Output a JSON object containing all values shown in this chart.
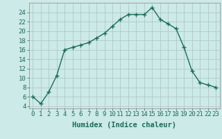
{
  "x": [
    0,
    1,
    2,
    3,
    4,
    5,
    6,
    7,
    8,
    9,
    10,
    11,
    12,
    13,
    14,
    15,
    16,
    17,
    18,
    19,
    20,
    21,
    22,
    23
  ],
  "y": [
    6,
    4.5,
    7,
    10.5,
    16,
    16.5,
    17,
    17.5,
    18.5,
    19.5,
    21,
    22.5,
    23.5,
    23.5,
    23.5,
    25,
    22.5,
    21.5,
    20.5,
    16.5,
    11.5,
    9,
    8.5,
    8
  ],
  "line_color": "#1a6b5a",
  "marker": "+",
  "marker_color": "#1a6b5a",
  "bg_color": "#cceae7",
  "grid_color": "#b0c8c8",
  "xlabel": "Humidex (Indice chaleur)",
  "xlabel_fontsize": 7.5,
  "xlim": [
    -0.5,
    23.5
  ],
  "ylim": [
    3.5,
    26
  ],
  "yticks": [
    4,
    6,
    8,
    10,
    12,
    14,
    16,
    18,
    20,
    22,
    24
  ],
  "xtick_labels": [
    "0",
    "1",
    "2",
    "3",
    "4",
    "5",
    "6",
    "7",
    "8",
    "9",
    "10",
    "11",
    "12",
    "13",
    "14",
    "15",
    "16",
    "17",
    "18",
    "19",
    "20",
    "21",
    "22",
    "23"
  ],
  "tick_fontsize": 6.5,
  "line_width": 1.0,
  "marker_size": 4
}
